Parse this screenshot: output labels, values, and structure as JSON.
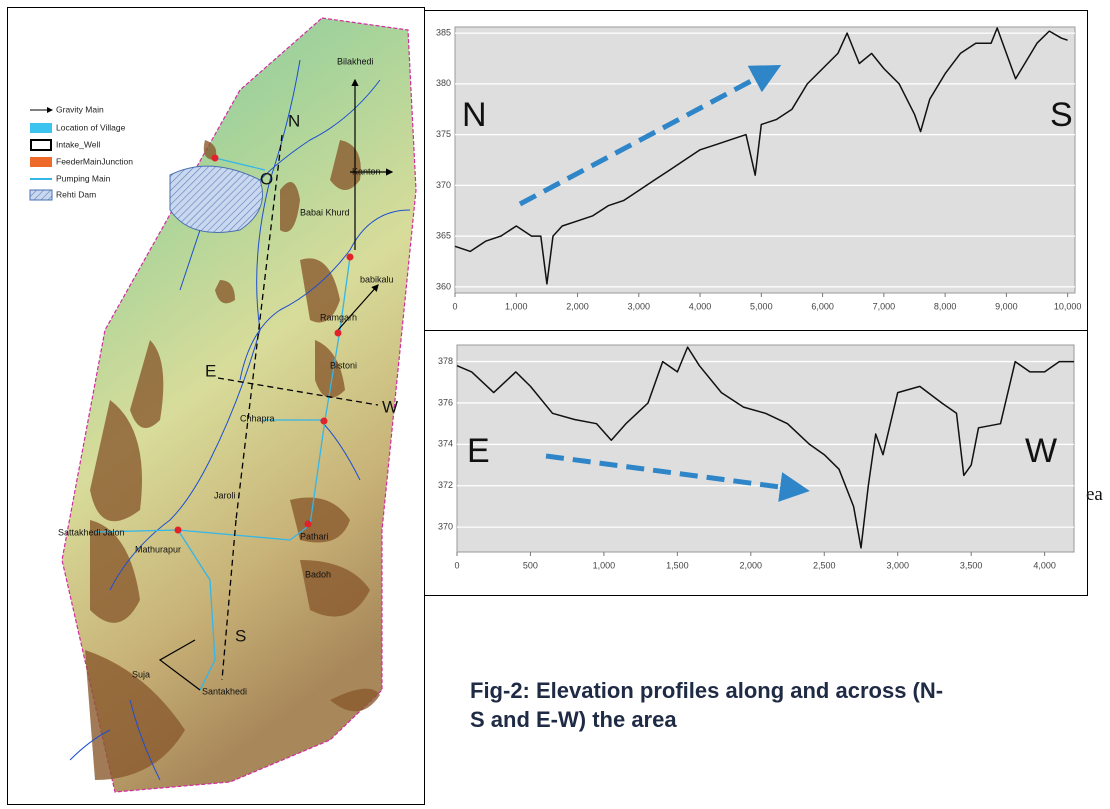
{
  "map": {
    "legend": [
      "Gravity Main",
      "Location of Village",
      "Intake_Well",
      "FeederMainJunction",
      "Pumping Main",
      "Rehti Dam"
    ],
    "labels": [
      "Bilakhedi",
      "Kanton",
      "Babai Khurd",
      "babikalu",
      "Ramgarh",
      "Bistoni",
      "Chhapra",
      "Jaroli",
      "Sattakhedi Jalon",
      "Mathurapur",
      "Pathari",
      "Badoh",
      "Suja",
      "Santakhedi"
    ],
    "directions": [
      "N",
      "O",
      "E",
      "W",
      "S"
    ]
  },
  "chart_data": [
    {
      "type": "line",
      "annotations": [
        "N",
        "S"
      ],
      "color": "#111111",
      "grid": true,
      "x": [
        0,
        250,
        500,
        750,
        1000,
        1250,
        1400,
        1500,
        1600,
        1750,
        2000,
        2250,
        2500,
        2750,
        3000,
        3250,
        3500,
        3750,
        4000,
        4250,
        4500,
        4750,
        4900,
        5000,
        5250,
        5500,
        5750,
        6000,
        6250,
        6400,
        6600,
        6800,
        7000,
        7250,
        7500,
        7600,
        7750,
        8000,
        8250,
        8500,
        8750,
        8850,
        9000,
        9150,
        9300,
        9500,
        9700,
        9900,
        10000
      ],
      "values": [
        364,
        363.5,
        364.5,
        365,
        366,
        365,
        365,
        360.3,
        365,
        366,
        366.5,
        367,
        368,
        368.5,
        369.5,
        370.5,
        371.5,
        372.5,
        373.5,
        374,
        374.5,
        375,
        371,
        376,
        376.5,
        377.5,
        380,
        381.5,
        383,
        385,
        382,
        383,
        381.5,
        380,
        377,
        375.3,
        378.5,
        381,
        383,
        384,
        384,
        385.5,
        383,
        380.5,
        382,
        384,
        385.2,
        384.5,
        384.3
      ],
      "xlim": [
        0,
        10120
      ],
      "ylim": [
        359.4,
        385.6
      ],
      "xticks": [
        0,
        {
          "value": 1000,
          "label": "1,000"
        },
        {
          "value": 2000,
          "label": "2,000"
        },
        {
          "value": 3000,
          "label": "3,000"
        },
        {
          "value": 4000,
          "label": "4,000"
        },
        {
          "value": 5000,
          "label": "5,000"
        },
        {
          "value": 6000,
          "label": "6,000"
        },
        {
          "value": 7000,
          "label": "7,000"
        },
        {
          "value": 8000,
          "label": "8,000"
        },
        {
          "value": 9000,
          "label": "9,000"
        },
        {
          "value": 10000,
          "label": "10,000"
        }
      ],
      "yticks": [
        360,
        365,
        370,
        375,
        380,
        385
      ]
    },
    {
      "type": "line",
      "annotations": [
        "E",
        "W"
      ],
      "color": "#111111",
      "grid": true,
      "x": [
        0,
        100,
        250,
        400,
        500,
        650,
        800,
        950,
        1050,
        1150,
        1300,
        1400,
        1500,
        1570,
        1650,
        1800,
        1950,
        2100,
        2250,
        2400,
        2500,
        2600,
        2700,
        2750,
        2800,
        2850,
        2900,
        3000,
        3150,
        3300,
        3400,
        3450,
        3500,
        3550,
        3700,
        3800,
        3900,
        4000,
        4100,
        4200
      ],
      "values": [
        377.8,
        377.5,
        376.5,
        377.5,
        376.8,
        375.5,
        375.2,
        375,
        374.2,
        375,
        376,
        378,
        377.5,
        378.7,
        377.8,
        376.5,
        375.8,
        375.5,
        375,
        374,
        373.5,
        372.8,
        371,
        369,
        372,
        374.5,
        373.5,
        376.5,
        376.8,
        376,
        375.5,
        372.5,
        373,
        374.8,
        375,
        378,
        377.5,
        377.5,
        378,
        378
      ],
      "xlim": [
        0,
        4200
      ],
      "ylim": [
        368.8,
        378.8
      ],
      "xticks": [
        0,
        500,
        {
          "value": 1000,
          "label": "1,000"
        },
        {
          "value": 1500,
          "label": "1,500"
        },
        {
          "value": 2000,
          "label": "2,000"
        },
        {
          "value": 2500,
          "label": "2,500"
        },
        {
          "value": 3000,
          "label": "3,000"
        },
        {
          "value": 3500,
          "label": "3,500"
        },
        {
          "value": 4000,
          "label": "4,000"
        }
      ],
      "yticks": [
        370,
        372,
        374,
        376,
        378
      ]
    }
  ],
  "caption": "Fig-2: Elevation profiles along and across (N-S and E-W) the area",
  "fragment": "ea"
}
